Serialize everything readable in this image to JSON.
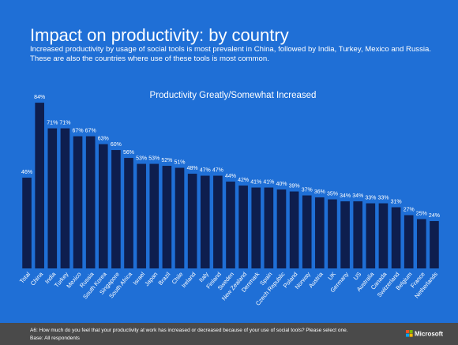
{
  "chart_data": {
    "type": "bar",
    "title": "Impact on productivity: by country",
    "subtitle": [
      "Increased productivity by usage of social tools is most prevalent in China, followed by India, Turkey, Mexico and Russia.",
      "These are also the countries where use of these tools is most common."
    ],
    "chart_title": "Productivity Greatly/Somewhat Increased",
    "categories": [
      "Total",
      "China",
      "India",
      "Turkey",
      "Mexico",
      "Russia",
      "South Korea",
      "Singapore",
      "South Africa",
      "Israel",
      "Japan",
      "Brazil",
      "Chile",
      "Ireland",
      "Italy",
      "Finland",
      "Sweden",
      "New Zealand",
      "Denmark",
      "Spain",
      "Czech Republic",
      "Poland",
      "Norway",
      "Austria",
      "UK",
      "Germany",
      "US",
      "Australia",
      "Canada",
      "Switzerland",
      "Belgium",
      "France",
      "Netherlands"
    ],
    "values": [
      46,
      84,
      71,
      71,
      67,
      67,
      63,
      60,
      56,
      53,
      53,
      52,
      51,
      48,
      47,
      47,
      44,
      42,
      41,
      41,
      40,
      39,
      37,
      36,
      35,
      34,
      34,
      33,
      33,
      31,
      27,
      25,
      24
    ],
    "value_labels": [
      "46%",
      "84%",
      "71%",
      "71%",
      "67%",
      "67%",
      "63%",
      "60%",
      "56%",
      "53%",
      "53%",
      "52%",
      "51%",
      "48%",
      "47%",
      "47%",
      "44%",
      "42%",
      "41%",
      "41%",
      "40%",
      "39%",
      "37%",
      "36%",
      "35%",
      "34%",
      "34%",
      "33%",
      "33%",
      "31%",
      "27%",
      "25%",
      "24%"
    ],
    "color": "#0e1e4e",
    "ylim": [
      0,
      100
    ],
    "footnote": [
      "A6: How much do you feel that your productivity at work has increased or decreased because of your use of social tools? Please select one.",
      "Base: All respondents"
    ],
    "brand": "Microsoft"
  }
}
